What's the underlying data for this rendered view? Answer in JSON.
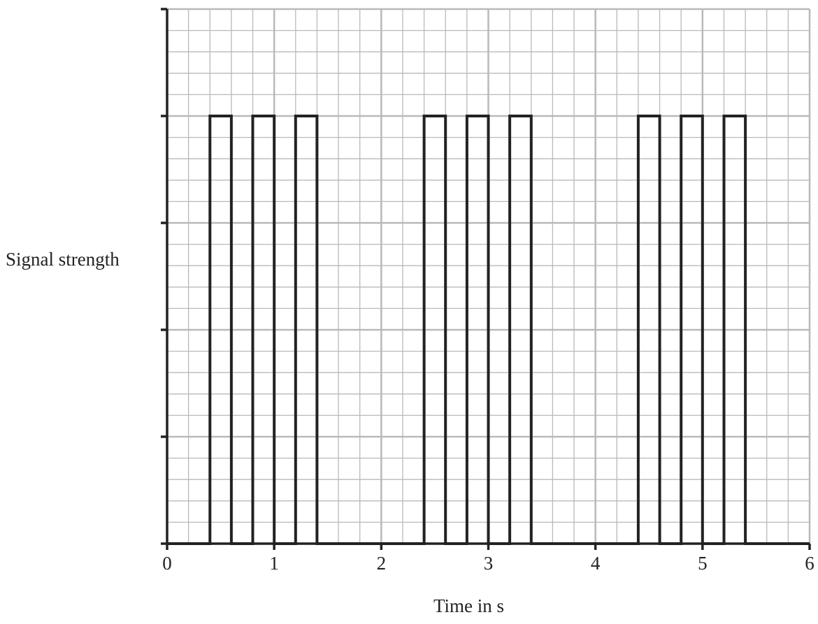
{
  "chart_data": {
    "type": "line",
    "step": true,
    "xlabel": "Time in s",
    "ylabel": "Signal strength",
    "xlim": [
      0,
      6
    ],
    "ylim": [
      0,
      5
    ],
    "x_ticks": [
      0,
      1,
      2,
      3,
      4,
      5,
      6
    ],
    "x_tick_labels": [
      "0",
      "1",
      "2",
      "3",
      "4",
      "5",
      "6"
    ],
    "y_ticks": [
      0,
      1,
      2,
      3,
      4,
      5
    ],
    "y_tick_labels": [],
    "grid": true,
    "x_minor_step": 0.2,
    "y_minor_step": 0.2,
    "series": [
      {
        "x": [
          0,
          0.4,
          0.4,
          0.6,
          0.6,
          0.8,
          0.8,
          1.0,
          1.0,
          1.2,
          1.2,
          1.4,
          1.4,
          2.4,
          2.4,
          2.6,
          2.6,
          2.8,
          2.8,
          3.0,
          3.0,
          3.2,
          3.2,
          3.4,
          3.4,
          4.4,
          4.4,
          4.6,
          4.6,
          4.8,
          4.8,
          5.0,
          5.0,
          5.2,
          5.2,
          5.4,
          5.4,
          6.0
        ],
        "y": [
          0,
          0,
          4,
          4,
          0,
          0,
          4,
          4,
          0,
          0,
          4,
          4,
          0,
          0,
          4,
          4,
          0,
          0,
          4,
          4,
          0,
          0,
          4,
          4,
          0,
          0,
          4,
          4,
          0,
          0,
          4,
          4,
          0,
          0,
          4,
          4,
          0,
          0
        ]
      }
    ]
  }
}
